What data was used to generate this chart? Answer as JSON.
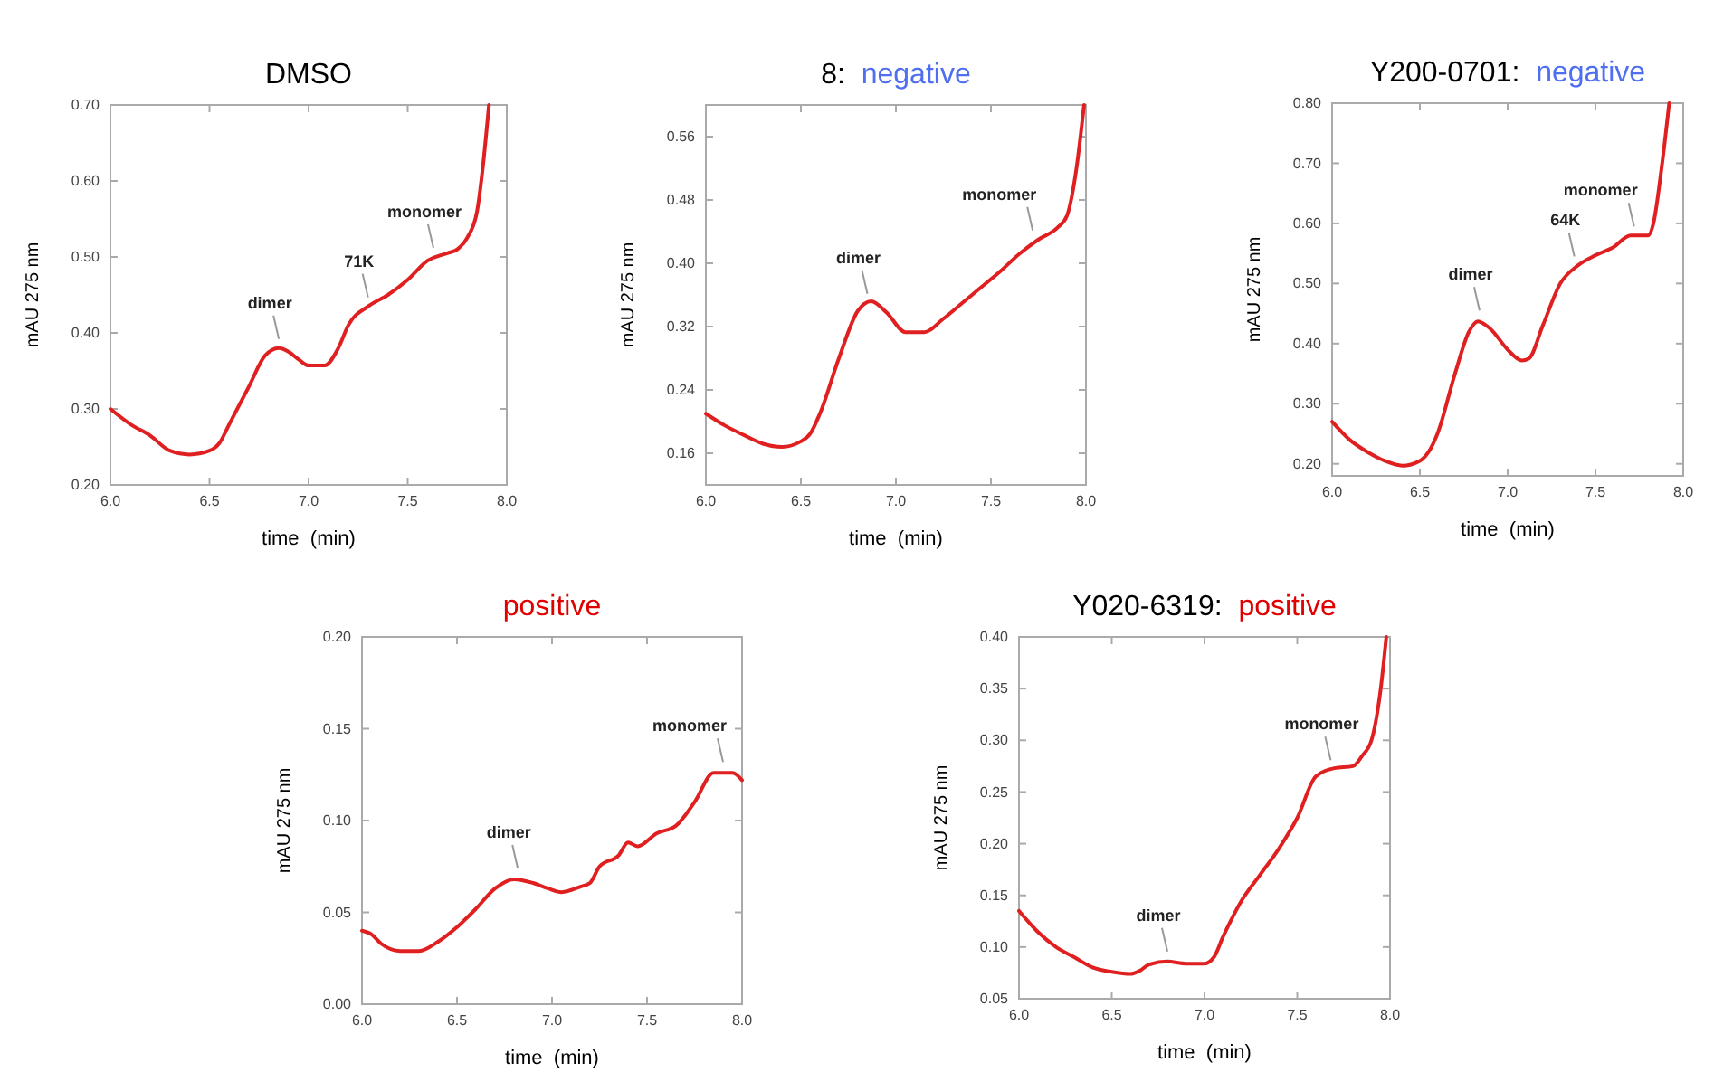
{
  "chart_data": [
    {
      "type": "line",
      "title": "DMSO",
      "xlabel": "time  (min)",
      "ylabel": "mAU 275 nm",
      "xlim": [
        6,
        8
      ],
      "ylim": [
        0.2,
        0.7
      ],
      "xticks": [
        {
          "value": 6,
          "label": "6.0"
        },
        {
          "value": 6.5,
          "label": "6.5"
        },
        {
          "value": 7,
          "label": "7.0"
        },
        {
          "value": 7.5,
          "label": "7.5"
        },
        {
          "value": 8,
          "label": "8.0"
        }
      ],
      "yticks": [
        {
          "value": 0.2,
          "label": "0.20"
        },
        {
          "value": 0.3,
          "label": "0.30"
        },
        {
          "value": 0.4,
          "label": "0.40"
        },
        {
          "value": 0.5,
          "label": "0.50"
        },
        {
          "value": 0.6,
          "label": "0.60"
        },
        {
          "value": 0.7,
          "label": "0.70"
        }
      ],
      "x": [
        6.0,
        6.1,
        6.2,
        6.3,
        6.4,
        6.5,
        6.55,
        6.6,
        6.7,
        6.78,
        6.85,
        6.9,
        6.95,
        7.0,
        7.08,
        7.15,
        7.2,
        7.3,
        7.4,
        7.5,
        7.6,
        7.7,
        7.75,
        7.8,
        7.85,
        7.88,
        7.91
      ],
      "series": [
        {
          "color": "#e02020",
          "values": [
            0.3,
            0.28,
            0.265,
            0.245,
            0.24,
            0.245,
            0.255,
            0.28,
            0.33,
            0.37,
            0.38,
            0.375,
            0.365,
            0.357,
            0.357,
            0.38,
            0.41,
            0.435,
            0.45,
            0.47,
            0.495,
            0.505,
            0.51,
            0.525,
            0.56,
            0.62,
            0.7
          ]
        }
      ],
      "annotations": [
        {
          "text": "dimer",
          "x": 6.85,
          "y": 0.38
        },
        {
          "text": "71K",
          "x": 7.3,
          "y": 0.435
        },
        {
          "text": "monomer",
          "x": 7.63,
          "y": 0.5
        }
      ]
    },
    {
      "type": "line",
      "title": "8:",
      "subtitle": "negative",
      "xlabel": "time  (min)",
      "ylabel": "mAU 275 nm",
      "xlim": [
        6,
        8
      ],
      "ylim": [
        0.12,
        0.6
      ],
      "xticks": [
        {
          "value": 6,
          "label": "6.0"
        },
        {
          "value": 6.5,
          "label": "6.5"
        },
        {
          "value": 7,
          "label": "7.0"
        },
        {
          "value": 7.5,
          "label": "7.5"
        },
        {
          "value": 8,
          "label": "8.0"
        }
      ],
      "yticks": [
        0.16,
        0.24,
        0.32,
        {
          "value": 0.4,
          "label": "0.40"
        },
        0.48,
        0.56
      ],
      "x": [
        6.0,
        6.1,
        6.2,
        6.3,
        6.4,
        6.5,
        6.55,
        6.6,
        6.7,
        6.8,
        6.87,
        6.95,
        7.05,
        7.15,
        7.25,
        7.35,
        7.45,
        7.55,
        7.65,
        7.75,
        7.85,
        7.9,
        7.95,
        7.99
      ],
      "series": [
        {
          "color": "#e02020",
          "values": [
            0.21,
            0.195,
            0.183,
            0.172,
            0.168,
            0.175,
            0.185,
            0.21,
            0.28,
            0.34,
            0.352,
            0.338,
            0.313,
            0.313,
            0.33,
            0.35,
            0.37,
            0.39,
            0.412,
            0.43,
            0.445,
            0.46,
            0.52,
            0.6
          ]
        }
      ],
      "annotations": [
        {
          "text": "dimer",
          "x": 6.85,
          "y": 0.35
        },
        {
          "text": "monomer",
          "x": 7.72,
          "y": 0.43
        }
      ]
    },
    {
      "type": "line",
      "title": "Y200-0701:",
      "subtitle": "negative",
      "xlabel": "time  (min)",
      "ylabel": "mAU 275 nm",
      "xlim": [
        6,
        8
      ],
      "ylim": [
        0.18,
        0.8
      ],
      "xticks": [
        {
          "value": 6,
          "label": "6.0"
        },
        {
          "value": 6.5,
          "label": "6.5"
        },
        {
          "value": 7,
          "label": "7.0"
        },
        {
          "value": 7.5,
          "label": "7.5"
        },
        {
          "value": 8,
          "label": "8.0"
        }
      ],
      "yticks": [
        {
          "value": 0.2,
          "label": "0.20"
        },
        {
          "value": 0.3,
          "label": "0.30"
        },
        {
          "value": 0.4,
          "label": "0.40"
        },
        {
          "value": 0.5,
          "label": "0.50"
        },
        {
          "value": 0.6,
          "label": "0.60"
        },
        {
          "value": 0.7,
          "label": "0.70"
        },
        {
          "value": 0.8,
          "label": "0.80"
        }
      ],
      "x": [
        6.0,
        6.1,
        6.2,
        6.3,
        6.4,
        6.5,
        6.55,
        6.6,
        6.7,
        6.78,
        6.83,
        6.9,
        7.0,
        7.08,
        7.12,
        7.2,
        7.3,
        7.4,
        7.5,
        7.6,
        7.7,
        7.8,
        7.83,
        7.88,
        7.92
      ],
      "series": [
        {
          "color": "#e02020",
          "values": [
            0.27,
            0.24,
            0.22,
            0.205,
            0.197,
            0.205,
            0.22,
            0.25,
            0.35,
            0.42,
            0.437,
            0.425,
            0.39,
            0.372,
            0.375,
            0.43,
            0.5,
            0.53,
            0.547,
            0.56,
            0.58,
            0.58,
            0.6,
            0.7,
            0.8
          ]
        }
      ],
      "annotations": [
        {
          "text": "dimer",
          "x": 6.84,
          "y": 0.44
        },
        {
          "text": "64K",
          "x": 7.38,
          "y": 0.53
        },
        {
          "text": "monomer",
          "x": 7.72,
          "y": 0.58
        }
      ]
    },
    {
      "type": "line",
      "subtitle": "positive",
      "xlabel": "time  (min)",
      "ylabel": "mAU 275 nm",
      "xlim": [
        6,
        8
      ],
      "ylim": [
        0,
        0.2
      ],
      "xticks": [
        {
          "value": 6,
          "label": "6.0"
        },
        {
          "value": 6.5,
          "label": "6.5"
        },
        {
          "value": 7,
          "label": "7.0"
        },
        {
          "value": 7.5,
          "label": "7.5"
        },
        {
          "value": 8,
          "label": "8.0"
        }
      ],
      "yticks": [
        {
          "value": 0,
          "label": "0.00"
        },
        {
          "value": 0.05,
          "label": "0.05"
        },
        {
          "value": 0.1,
          "label": "0.10"
        },
        {
          "value": 0.15,
          "label": "0.15"
        },
        {
          "value": 0.2,
          "label": "0.20"
        }
      ],
      "x": [
        6.0,
        6.05,
        6.1,
        6.2,
        6.25,
        6.3,
        6.4,
        6.5,
        6.6,
        6.7,
        6.8,
        6.9,
        6.98,
        7.05,
        7.15,
        7.2,
        7.25,
        7.35,
        7.4,
        7.45,
        7.55,
        7.65,
        7.75,
        7.85,
        7.95,
        8.0
      ],
      "series": [
        {
          "color": "#e02020",
          "values": [
            0.04,
            0.038,
            0.033,
            0.029,
            0.029,
            0.029,
            0.034,
            0.042,
            0.052,
            0.063,
            0.068,
            0.066,
            0.063,
            0.061,
            0.064,
            0.066,
            0.075,
            0.081,
            0.088,
            0.086,
            0.093,
            0.097,
            0.11,
            0.126,
            0.126,
            0.122
          ]
        }
      ],
      "annotations": [
        {
          "text": "dimer",
          "x": 6.82,
          "y": 0.069
        },
        {
          "text": "monomer",
          "x": 7.9,
          "y": 0.127
        }
      ]
    },
    {
      "type": "line",
      "title": "Y020-6319:",
      "subtitle": "positive",
      "xlabel": "time  (min)",
      "ylabel": "mAU 275 nm",
      "xlim": [
        6,
        8
      ],
      "ylim": [
        0.05,
        0.4
      ],
      "xticks": [
        {
          "value": 6,
          "label": "6.0"
        },
        {
          "value": 6.5,
          "label": "6.5"
        },
        {
          "value": 7,
          "label": "7.0"
        },
        {
          "value": 7.5,
          "label": "7.5"
        },
        {
          "value": 8,
          "label": "8.0"
        }
      ],
      "yticks": [
        {
          "value": 0.05,
          "label": "0.05"
        },
        {
          "value": 0.1,
          "label": "0.10"
        },
        {
          "value": 0.15,
          "label": "0.15"
        },
        {
          "value": 0.2,
          "label": "0.20"
        },
        {
          "value": 0.25,
          "label": "0.25"
        },
        {
          "value": 0.3,
          "label": "0.30"
        },
        {
          "value": 0.35,
          "label": "0.35"
        },
        {
          "value": 0.4,
          "label": "0.40"
        }
      ],
      "x": [
        6.0,
        6.1,
        6.2,
        6.3,
        6.4,
        6.5,
        6.6,
        6.65,
        6.7,
        6.8,
        6.9,
        7.0,
        7.05,
        7.1,
        7.2,
        7.3,
        7.4,
        7.5,
        7.6,
        7.7,
        7.8,
        7.85,
        7.9,
        7.95,
        7.98
      ],
      "series": [
        {
          "color": "#e02020",
          "values": [
            0.135,
            0.115,
            0.1,
            0.09,
            0.08,
            0.076,
            0.074,
            0.077,
            0.083,
            0.086,
            0.084,
            0.084,
            0.09,
            0.11,
            0.145,
            0.17,
            0.195,
            0.225,
            0.265,
            0.273,
            0.275,
            0.285,
            0.3,
            0.35,
            0.4
          ]
        }
      ],
      "annotations": [
        {
          "text": "dimer",
          "x": 6.8,
          "y": 0.087
        },
        {
          "text": "monomer",
          "x": 7.68,
          "y": 0.272
        }
      ]
    }
  ]
}
